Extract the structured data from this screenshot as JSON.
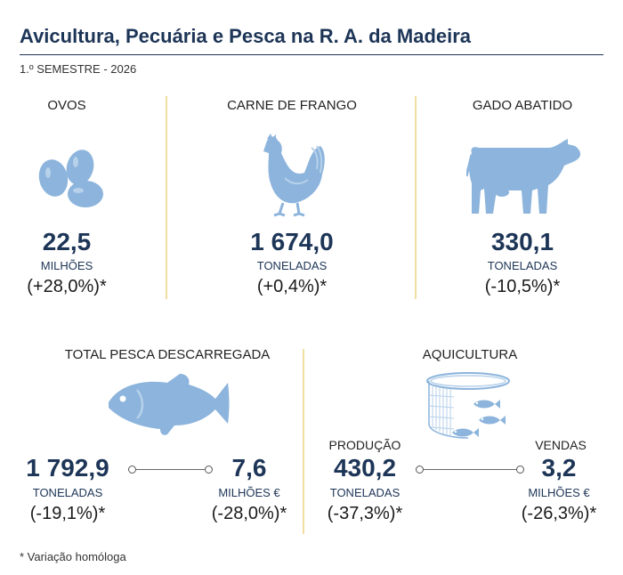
{
  "header": {
    "title": "Avicultura, Pecuária e Pesca na R. A. da Madeira",
    "subtitle": "1.º SEMESTRE - 2026"
  },
  "colors": {
    "title": "#1d3557",
    "icon": "#8cb4dc",
    "separator": "#f1dfa1"
  },
  "top_cards": [
    {
      "category": "OVOS",
      "value": "22,5",
      "unit": "MILHÕES",
      "change": "(+28,0%)*",
      "icon": "eggs-icon"
    },
    {
      "category": "CARNE DE FRANGO",
      "value": "1 674,0",
      "unit": "TONELADAS",
      "change": "(+0,4%)*",
      "icon": "chicken-icon"
    },
    {
      "category": "GADO ABATIDO",
      "value": "330,1",
      "unit": "TONELADAS",
      "change": "(-10,5%)*",
      "icon": "cow-icon"
    }
  ],
  "pesca": {
    "category": "TOTAL PESCA DESCARREGADA",
    "icon": "fish-icon",
    "left": {
      "value": "1 792,9",
      "unit": "TONELADAS",
      "change": "(-19,1%)*"
    },
    "right": {
      "value": "7,6",
      "unit": "MILHÕES €",
      "change": "(-28,0%)*"
    }
  },
  "aquicultura": {
    "category": "AQUICULTURA",
    "icon": "fish-cage-icon",
    "left": {
      "label": "PRODUÇÃO",
      "value": "430,2",
      "unit": "TONELADAS",
      "change": "(-37,3%)*"
    },
    "right": {
      "label": "VENDAS",
      "value": "3,2",
      "unit": "MILHÕES €",
      "change": "(-26,3%)*"
    }
  },
  "footnote": "* Variação homóloga"
}
